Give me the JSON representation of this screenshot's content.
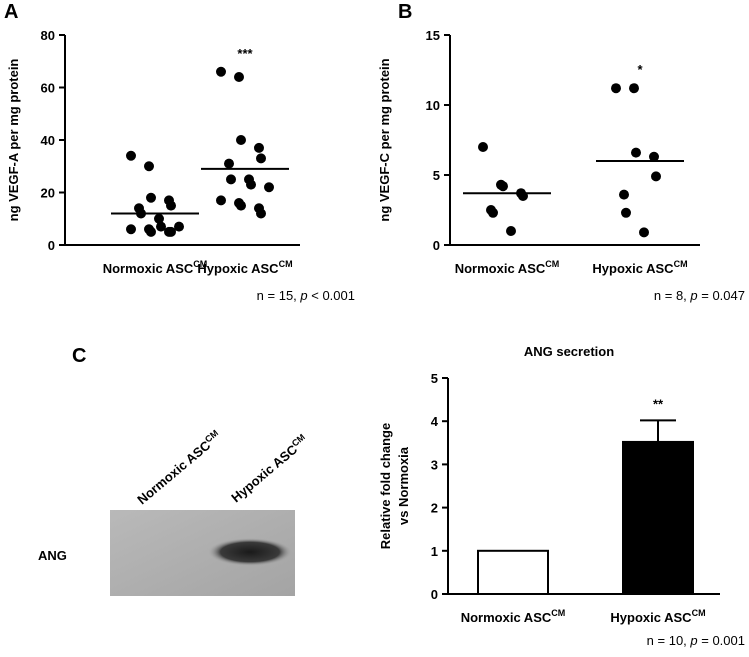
{
  "panel_labels": [
    "A",
    "B",
    "C"
  ],
  "blot": {
    "lane_labels": [
      "Normoxic ASC",
      "Hypoxic ASC"
    ],
    "lane_superscript": "CM",
    "row_label": "ANG"
  },
  "chart_data": [
    {
      "type": "dot",
      "ylabel": "ng VEGF-A per mg protein",
      "categories": [
        "Normoxic ASC",
        "Hypoxic ASC"
      ],
      "category_superscript": "CM",
      "values": [
        [
          34,
          30,
          18,
          17,
          15,
          14,
          12,
          10,
          7,
          7,
          6,
          6,
          5,
          5,
          5
        ],
        [
          66,
          64,
          40,
          37,
          33,
          31,
          25,
          25,
          23,
          22,
          17,
          16,
          15,
          14,
          12
        ]
      ],
      "means": [
        12,
        29
      ],
      "annotation": "***",
      "ylim": [
        0,
        80
      ],
      "yticks": [
        0,
        20,
        40,
        60,
        80
      ],
      "note": [
        "n = 15, ",
        "p",
        " < 0.001"
      ]
    },
    {
      "type": "dot",
      "ylabel": "ng VEGF-C per mg protein",
      "categories": [
        "Normoxic ASC",
        "Hypoxic ASC"
      ],
      "category_superscript": "CM",
      "values": [
        [
          7,
          4.3,
          4.2,
          3.7,
          3.5,
          2.5,
          2.3,
          1
        ],
        [
          11.2,
          11.2,
          6.6,
          6.3,
          4.9,
          3.6,
          2.3,
          0.9
        ]
      ],
      "means": [
        3.7,
        6
      ],
      "annotation": "*",
      "ylim": [
        0,
        15
      ],
      "yticks": [
        0,
        5,
        10,
        15
      ],
      "note": [
        "n = 8, ",
        "p",
        " = 0.047"
      ]
    },
    {
      "type": "bar",
      "title": "ANG secretion",
      "ylabel": [
        "Relative fold change",
        "vs Normoxia"
      ],
      "categories": [
        "Normoxic ASC",
        "Hypoxic ASC"
      ],
      "category_superscript": "CM",
      "values": [
        1,
        3.52
      ],
      "errors": [
        null,
        0.5
      ],
      "colors": [
        "#ffffff",
        "#000000"
      ],
      "annotation": "**",
      "ylim": [
        0,
        5
      ],
      "yticks": [
        0,
        1,
        2,
        3,
        4,
        5
      ],
      "note": [
        "n = 10, ",
        "p",
        " = 0.001"
      ]
    }
  ]
}
